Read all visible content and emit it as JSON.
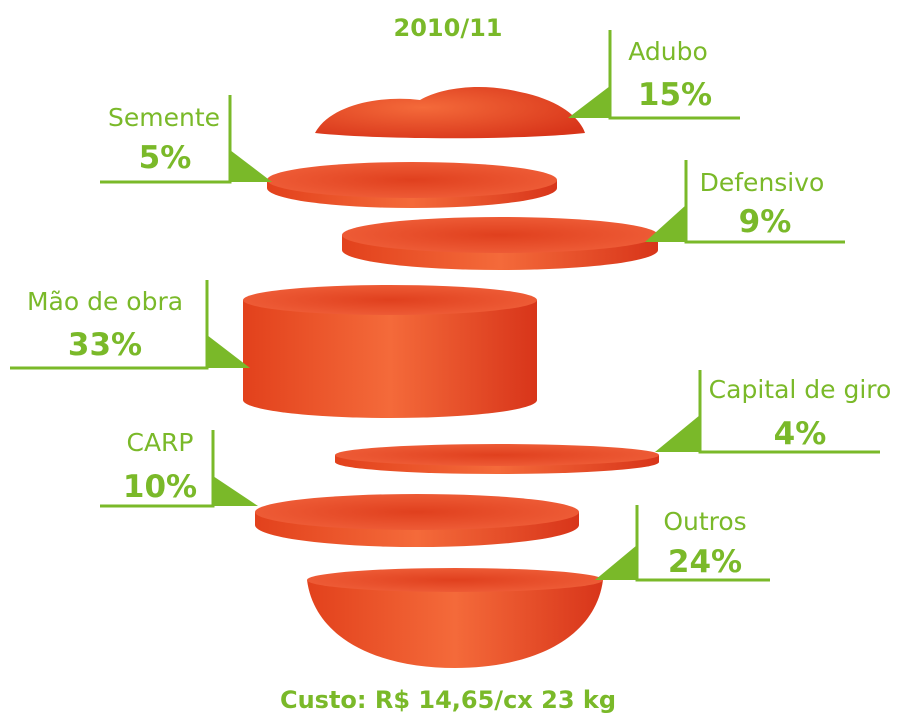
{
  "title": "2010/11",
  "items": [
    {
      "label": "Adubo",
      "share": "15%"
    },
    {
      "label": "Semente",
      "share": "5%"
    },
    {
      "label": "Defensivo",
      "share": "9%"
    },
    {
      "label": "Mão de obra",
      "share": "33%"
    },
    {
      "label": "Capital de giro",
      "share": "4%"
    },
    {
      "label": "CARP",
      "share": "10%"
    },
    {
      "label": "Outros",
      "share": "24%"
    }
  ],
  "footer": "Custo: R$ 14,65/cx 23 kg"
}
